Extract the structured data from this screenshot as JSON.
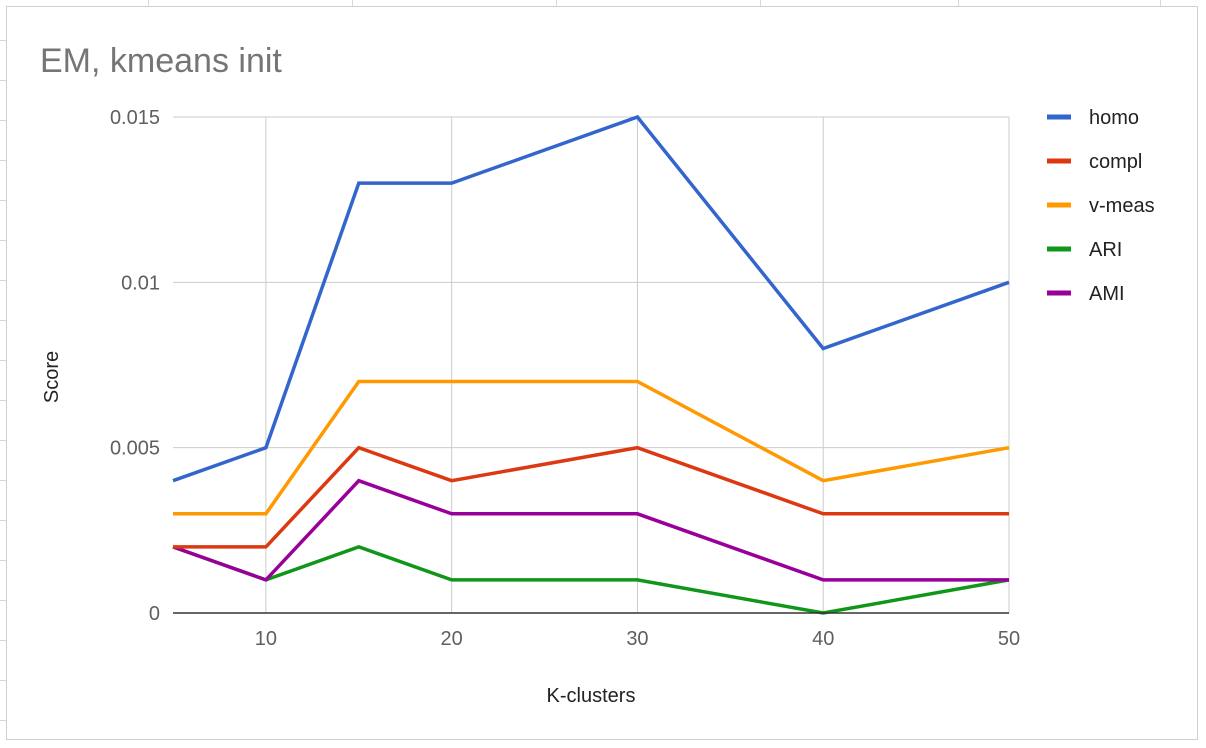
{
  "chart_data": {
    "type": "line",
    "title": "EM, kmeans init",
    "xlabel": "K-clusters",
    "ylabel": "Score",
    "x": [
      5,
      10,
      15,
      20,
      30,
      40,
      50
    ],
    "xticks": [
      10,
      20,
      30,
      40,
      50
    ],
    "xtick_labels": [
      "10",
      "20",
      "30",
      "40",
      "50"
    ],
    "xlim": [
      5,
      50
    ],
    "yticks": [
      0,
      0.005,
      0.01,
      0.015
    ],
    "ytick_labels": [
      "0",
      "0.005",
      "0.01",
      "0.015"
    ],
    "ylim": [
      0,
      0.015
    ],
    "grid": true,
    "legend_position": "right",
    "series": [
      {
        "name": "homo",
        "color": "#3366cc",
        "values": [
          0.004,
          0.005,
          0.013,
          0.013,
          0.015,
          0.008,
          0.01
        ]
      },
      {
        "name": "compl",
        "color": "#dc3912",
        "values": [
          0.002,
          0.002,
          0.005,
          0.004,
          0.005,
          0.003,
          0.003
        ]
      },
      {
        "name": "v-meas",
        "color": "#ff9900",
        "values": [
          0.003,
          0.003,
          0.007,
          0.007,
          0.007,
          0.004,
          0.005
        ]
      },
      {
        "name": "ARI",
        "color": "#109618",
        "values": [
          0.002,
          0.001,
          0.002,
          0.001,
          0.001,
          0.0,
          0.001
        ]
      },
      {
        "name": "AMI",
        "color": "#990099",
        "values": [
          0.002,
          0.001,
          0.004,
          0.003,
          0.003,
          0.001,
          0.001
        ]
      }
    ]
  }
}
